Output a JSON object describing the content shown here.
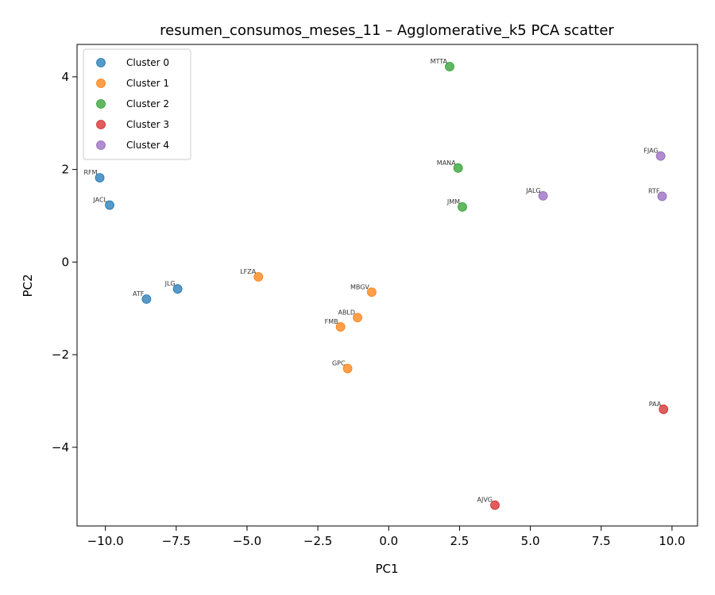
{
  "chart_data": {
    "type": "scatter",
    "title": "resumen_consumos_meses_11 – Agglomerative_k5 PCA scatter",
    "xlabel": "PC1",
    "ylabel": "PC2",
    "xlim": [
      -11.0,
      10.9
    ],
    "ylim": [
      -5.7,
      4.7
    ],
    "xticks": [
      -10.0,
      -7.5,
      -5.0,
      -2.5,
      0.0,
      2.5,
      5.0,
      7.5,
      10.0
    ],
    "xtick_labels": [
      "−10.0",
      "−7.5",
      "−5.0",
      "−2.5",
      "0.0",
      "2.5",
      "5.0",
      "7.5",
      "10.0"
    ],
    "yticks": [
      4,
      2,
      0,
      -2,
      -4
    ],
    "ytick_labels": [
      "4",
      "2",
      "0",
      "−2",
      "−4"
    ],
    "grid": false,
    "legend_position": "top-left",
    "series": [
      {
        "name": "Cluster 0",
        "color": "#1f77b4",
        "points": [
          {
            "x": -10.2,
            "y": 1.82,
            "label": "RFM"
          },
          {
            "x": -9.85,
            "y": 1.23,
            "label": "JACL"
          },
          {
            "x": -8.55,
            "y": -0.8,
            "label": "ATF"
          },
          {
            "x": -7.45,
            "y": -0.58,
            "label": "JLG"
          }
        ]
      },
      {
        "name": "Cluster 1",
        "color": "#ff7f0e",
        "points": [
          {
            "x": -4.6,
            "y": -0.32,
            "label": "LFZA"
          },
          {
            "x": -0.6,
            "y": -0.65,
            "label": "MBGV"
          },
          {
            "x": -1.1,
            "y": -1.2,
            "label": "ABLD"
          },
          {
            "x": -1.7,
            "y": -1.4,
            "label": "FMB"
          },
          {
            "x": -1.45,
            "y": -2.3,
            "label": "GPC"
          }
        ]
      },
      {
        "name": "Cluster 2",
        "color": "#2ca02c",
        "points": [
          {
            "x": 2.15,
            "y": 4.22,
            "label": "MTTA"
          },
          {
            "x": 2.45,
            "y": 2.03,
            "label": "MANA"
          },
          {
            "x": 2.6,
            "y": 1.19,
            "label": "JMM"
          }
        ]
      },
      {
        "name": "Cluster 3",
        "color": "#d62728",
        "points": [
          {
            "x": 9.7,
            "y": -3.18,
            "label": "PAA"
          },
          {
            "x": 3.75,
            "y": -5.25,
            "label": "AJVG"
          }
        ]
      },
      {
        "name": "Cluster 4",
        "color": "#9467bd",
        "points": [
          {
            "x": 9.6,
            "y": 2.29,
            "label": "FJAG"
          },
          {
            "x": 9.65,
            "y": 1.42,
            "label": "RTF"
          },
          {
            "x": 5.45,
            "y": 1.43,
            "label": "JALG"
          }
        ]
      }
    ]
  }
}
